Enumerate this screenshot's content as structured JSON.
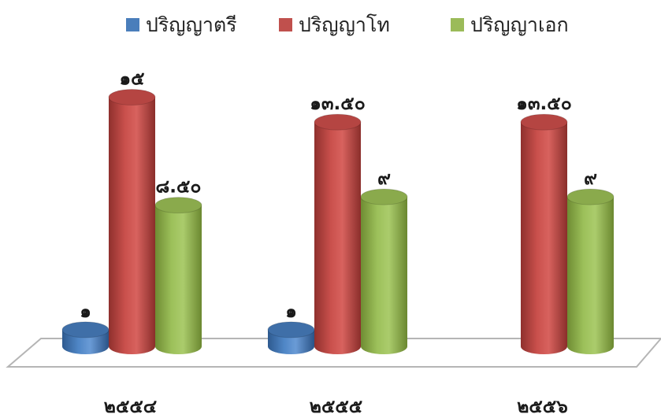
{
  "chart_data": {
    "type": "bar",
    "style": "3d-cylinder",
    "categories": [
      "๒๕๕๔",
      "๒๕๕๕",
      "๒๕๕๖"
    ],
    "series": [
      {
        "name": "ปริญญาตรี",
        "color": "#4A7EBB",
        "values": [
          1,
          1,
          null
        ],
        "labels": [
          "๑",
          "๑",
          ""
        ]
      },
      {
        "name": "ปริญญาโท",
        "color": "#C0504D",
        "values": [
          15,
          13.5,
          13.5
        ],
        "labels": [
          "๑๕",
          "๑๓.๕๐",
          "๑๓.๕๐"
        ]
      },
      {
        "name": "ปริญญาเอก",
        "color": "#9BBB59",
        "values": [
          8.5,
          9,
          9
        ],
        "labels": [
          "๘.๕๐",
          "๙",
          "๙"
        ]
      }
    ],
    "legend_position": "top",
    "grid": false,
    "ylim": [
      0,
      15
    ]
  }
}
